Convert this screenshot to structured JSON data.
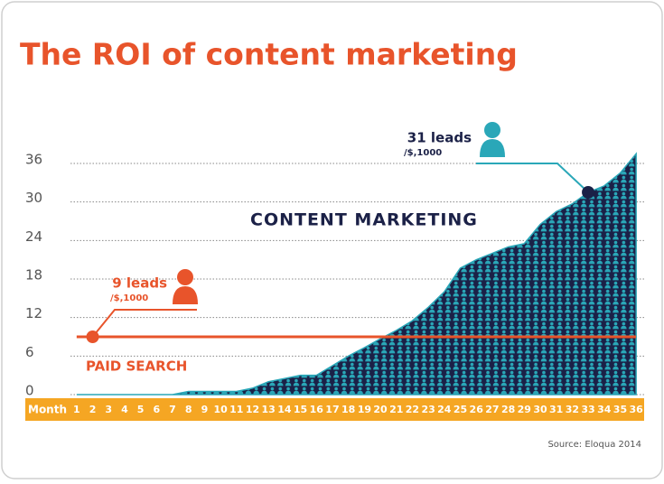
{
  "chart_data": {
    "type": "area",
    "title": "The ROI of content marketing",
    "x_label": "Month",
    "categories": [
      "1",
      "2",
      "3",
      "4",
      "5",
      "6",
      "7",
      "8",
      "9",
      "10",
      "11",
      "12",
      "13",
      "14",
      "15",
      "16",
      "17",
      "18",
      "19",
      "20",
      "21",
      "22",
      "23",
      "24",
      "25",
      "26",
      "27",
      "28",
      "29",
      "30",
      "31",
      "32",
      "33",
      "34",
      "35",
      "36"
    ],
    "series": [
      {
        "name": "CONTENT MARKETING",
        "color": "#1b2147",
        "values": [
          0,
          0,
          0,
          0,
          0,
          0,
          0,
          0.5,
          0.5,
          0.5,
          0.5,
          1,
          2,
          2.5,
          3,
          3,
          4.5,
          6,
          7.3,
          8.7,
          10,
          11.5,
          13.6,
          16,
          19.7,
          21,
          22,
          23,
          23.5,
          26.5,
          28.5,
          29.7,
          31.5,
          32.5,
          34.5,
          37.5
        ]
      },
      {
        "name": "PAID SEARCH",
        "color": "#e8542b",
        "values": [
          9,
          9,
          9,
          9,
          9,
          9,
          9,
          9,
          9,
          9,
          9,
          9,
          9,
          9,
          9,
          9,
          9,
          9,
          9,
          9,
          9,
          9,
          9,
          9,
          9,
          9,
          9,
          9,
          9,
          9,
          9,
          9,
          9,
          9,
          9,
          9
        ]
      }
    ],
    "annotations": [
      {
        "text": "31 leads",
        "sub": "/$,1000"
      },
      {
        "text": "9 leads",
        "sub": "/$,1000"
      }
    ],
    "ylim": [
      0,
      36
    ],
    "yticks": [
      0,
      6,
      12,
      18,
      24,
      30,
      36
    ],
    "grid": true,
    "source": "Source: Eloqua 2014"
  }
}
